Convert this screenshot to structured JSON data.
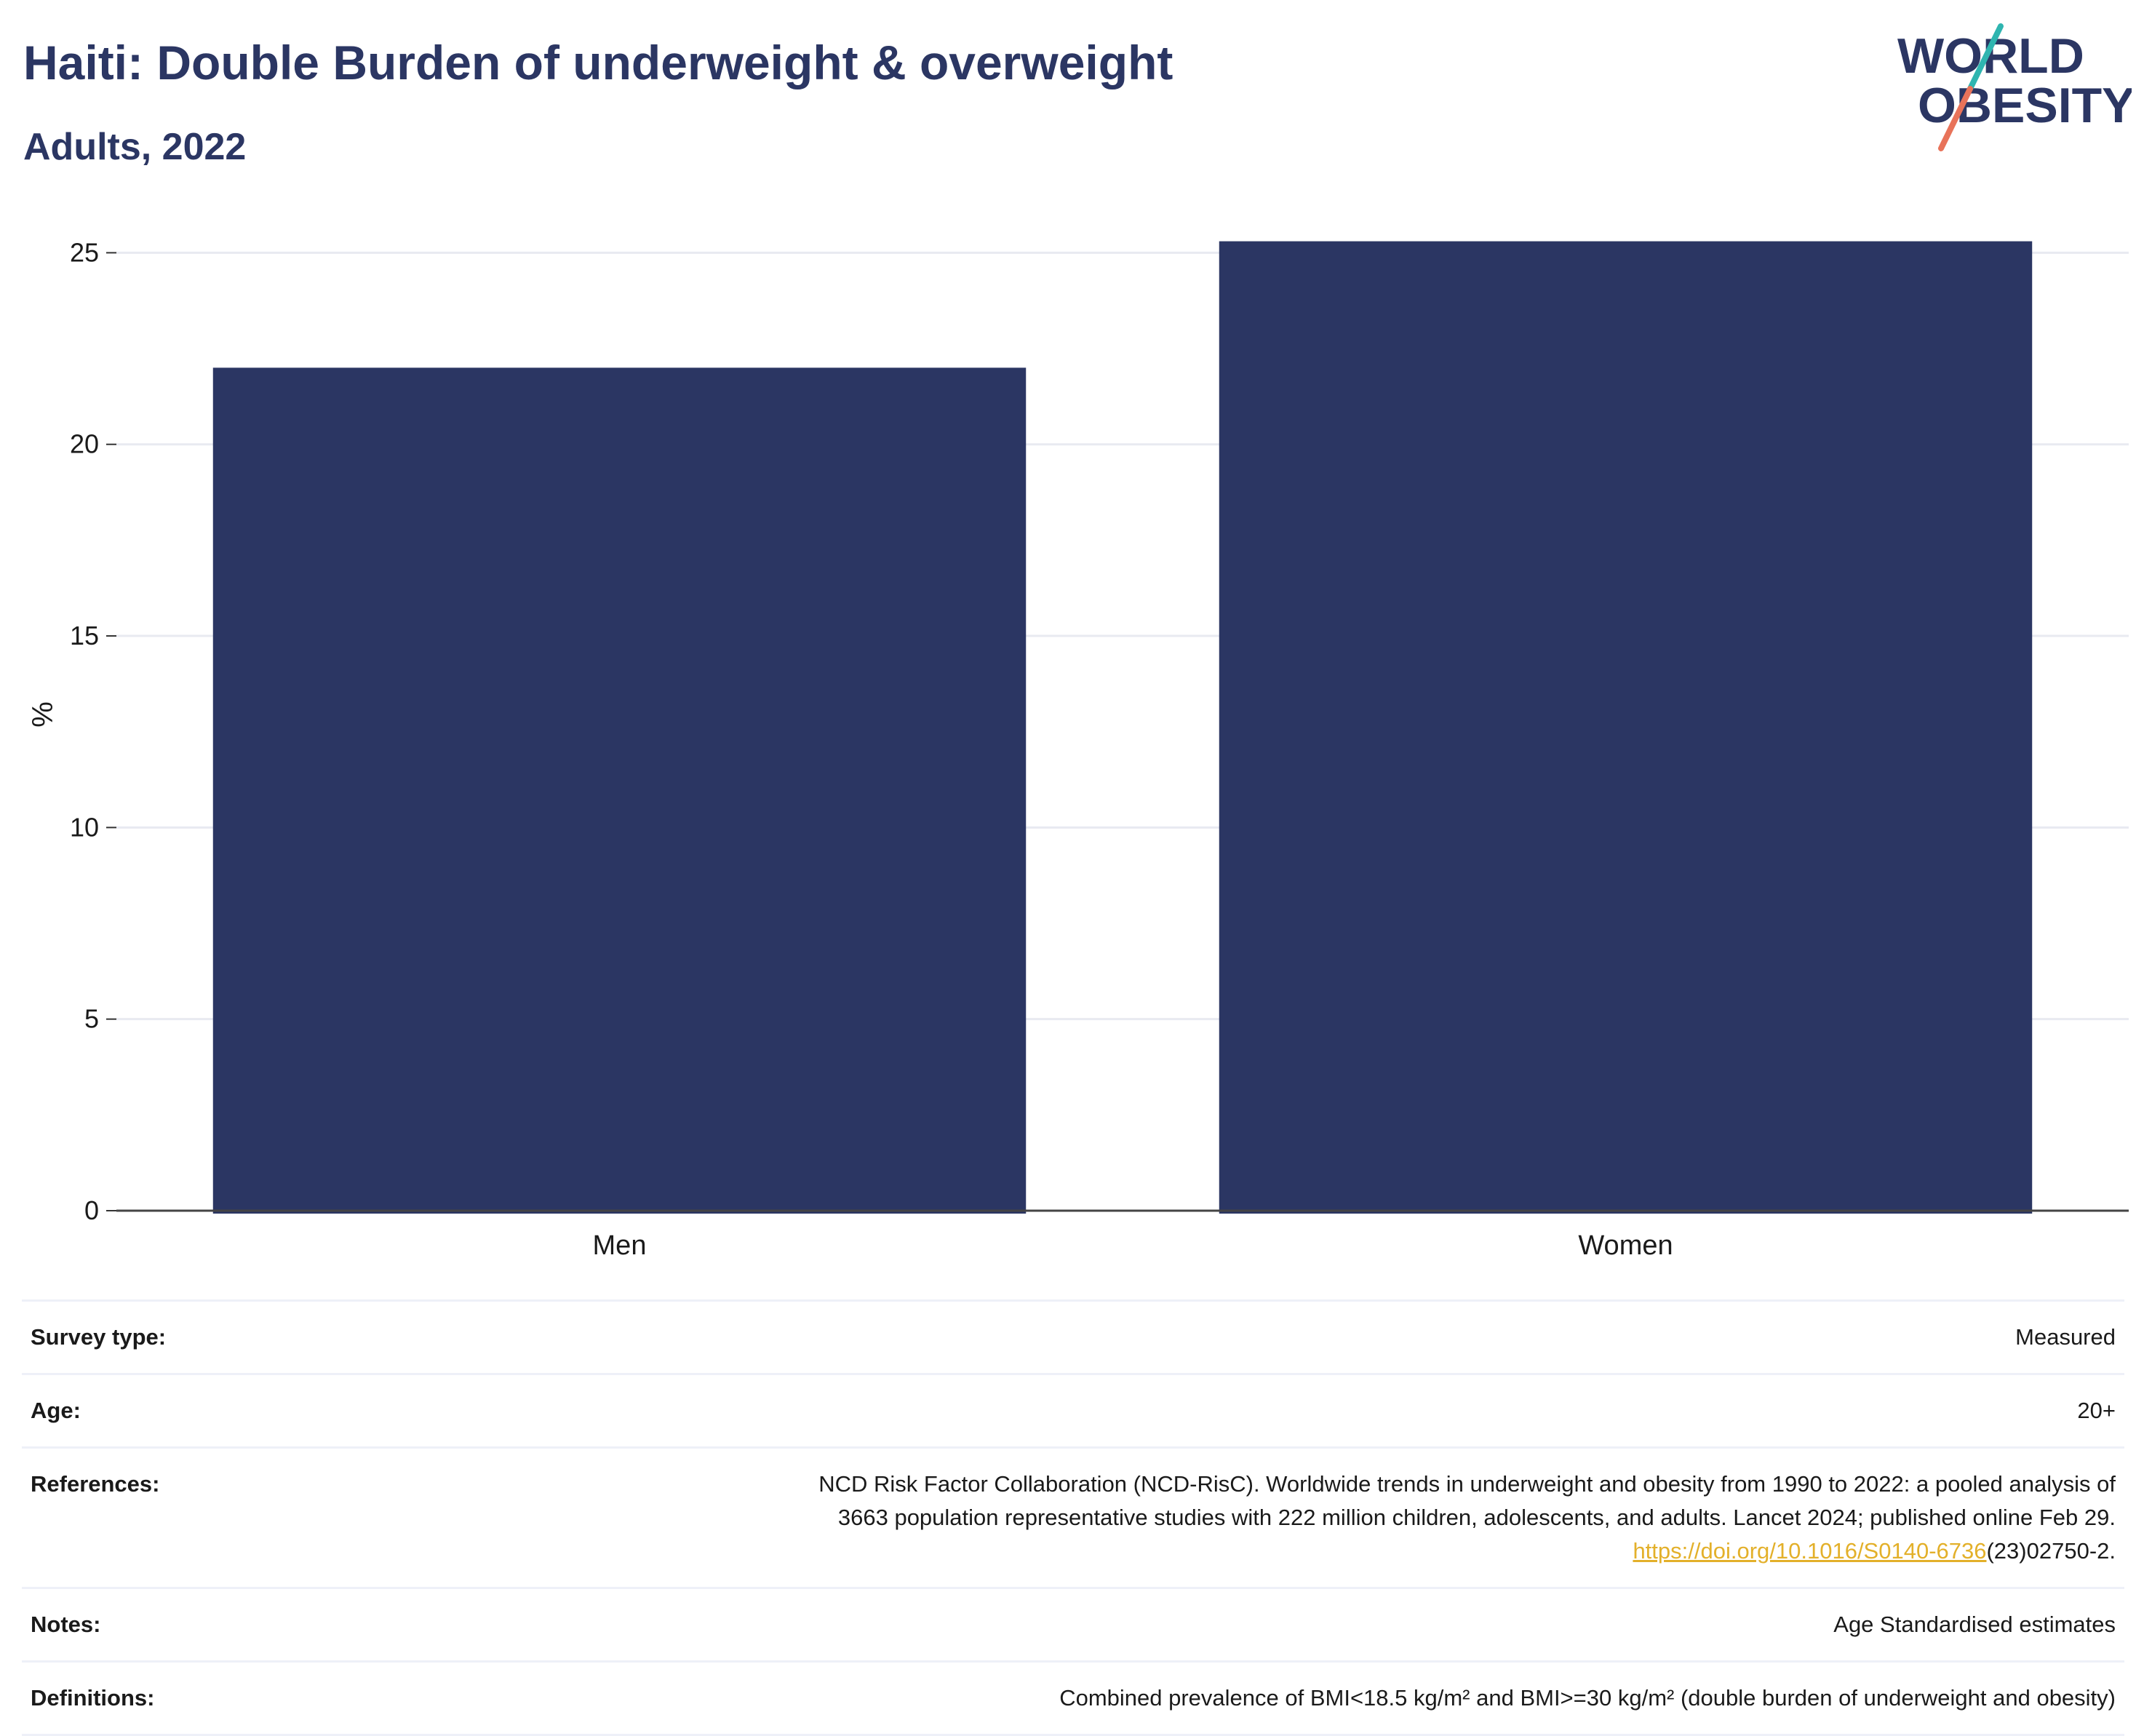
{
  "header": {
    "title": "Haiti: Double Burden of underweight & overweight",
    "subtitle": "Adults, 2022"
  },
  "logo": {
    "line1": "WORLD",
    "line2": "OBESITY",
    "text_color": "#2b3663",
    "slash_top_color": "#2fb5b0",
    "slash_bottom_color": "#e8735a"
  },
  "chart_data": {
    "type": "bar",
    "categories": [
      "Men",
      "Women"
    ],
    "values": [
      22.0,
      25.3
    ],
    "bar_color": "#2b3663",
    "title": "",
    "xlabel": "",
    "ylabel": "%",
    "ylim": [
      0,
      25.9
    ],
    "yticks": [
      0,
      5,
      10,
      15,
      20,
      25
    ],
    "grid": true,
    "legend": "none"
  },
  "meta": {
    "survey_type": {
      "label": "Survey type:",
      "value": "Measured"
    },
    "age": {
      "label": "Age:",
      "value": "20+"
    },
    "references": {
      "label": "References:",
      "line1": "NCD Risk Factor Collaboration (NCD-RisC). Worldwide trends in underweight and obesity from 1990 to 2022: a pooled analysis of",
      "line2": "3663 population representative studies with 222 million children, adolescents, and adults. Lancet 2024; published online Feb 29.",
      "link": "https://doi.org/10.1016/S0140-6736",
      "suffix": "(23)02750-2."
    },
    "notes": {
      "label": "Notes:",
      "value": "Age Standardised estimates"
    },
    "definitions": {
      "label": "Definitions:",
      "value": "Combined prevalence of BMI<18.5 kg/m² and BMI>=30 kg/m² (double burden of underweight and obesity)"
    }
  }
}
